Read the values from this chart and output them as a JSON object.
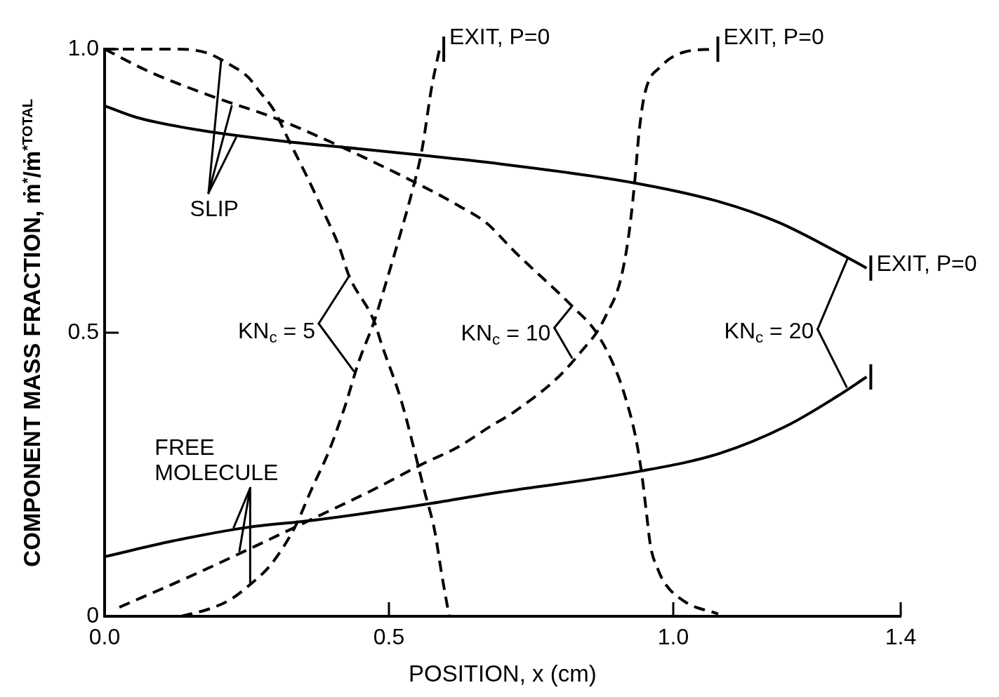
{
  "chart_data": {
    "type": "line",
    "xlabel": "POSITION, x (cm)",
    "ylabel": "COMPONENT MASS FRACTION, ṁ$^{*}$/ṁ$^{*TOTAL}$",
    "xlim": [
      0,
      1.4
    ],
    "ylim": [
      0,
      1
    ],
    "xticks": [
      {
        "value": 0,
        "label": "0.0"
      },
      0.5,
      {
        "value": 1,
        "label": "1.0"
      },
      1.4
    ],
    "yticks": [
      0,
      0.5,
      {
        "value": 1,
        "label": "1.0"
      }
    ],
    "series": [
      {
        "color": "#000000",
        "line_style": "dashed",
        "x": [
          0,
          0.06,
          0.12,
          0.178,
          0.218,
          0.253,
          0.271,
          0.298,
          0.324,
          0.355,
          0.386,
          0.412,
          0.43,
          0.474,
          0.487,
          0.522,
          0.564,
          0.58,
          0.593,
          0.606
        ],
        "values": [
          1,
          1,
          1,
          0.994,
          0.974,
          0.95,
          0.927,
          0.892,
          0.839,
          0.777,
          0.711,
          0.653,
          0.6,
          0.52,
          0.48,
          0.379,
          0.215,
          0.153,
          0.073,
          0
        ]
      },
      {
        "color": "#000000",
        "line_style": "dashed",
        "x": [
          0.135,
          0.187,
          0.222,
          0.256,
          0.289,
          0.315,
          0.337,
          0.364,
          0.394,
          0.421,
          0.447,
          0.474,
          0.496,
          0.518,
          0.54,
          0.558,
          0.575,
          0.589
        ],
        "values": [
          0,
          0.014,
          0.03,
          0.056,
          0.087,
          0.123,
          0.162,
          0.224,
          0.29,
          0.365,
          0.449,
          0.52,
          0.592,
          0.667,
          0.746,
          0.822,
          0.932,
          1
        ]
      },
      {
        "color": "#000000",
        "line_style": "dashed",
        "x": [
          0,
          0.077,
          0.191,
          0.298,
          0.407,
          0.54,
          0.619,
          0.672,
          0.721,
          0.824,
          0.865,
          0.899,
          0.917,
          0.934,
          0.945,
          0.953,
          0.96,
          0.973,
          0.984,
          1.02,
          1.079
        ],
        "values": [
          1,
          0.961,
          0.916,
          0.879,
          0.832,
          0.768,
          0.726,
          0.693,
          0.643,
          0.545,
          0.5,
          0.434,
          0.382,
          0.315,
          0.248,
          0.181,
          0.124,
          0.083,
          0.06,
          0.026,
          0.004
        ]
      },
      {
        "color": "#000000",
        "line_style": "dashed",
        "x": [
          0.026,
          0.143,
          0.253,
          0.364,
          0.474,
          0.562,
          0.619,
          0.677,
          0.721,
          0.799,
          0.845,
          0.865,
          0.881,
          0.907,
          0.922,
          0.932,
          0.94,
          0.95,
          0.979,
          1.02,
          1.071
        ],
        "values": [
          0.016,
          0.067,
          0.118,
          0.171,
          0.224,
          0.27,
          0.297,
          0.334,
          0.361,
          0.423,
          0.475,
          0.5,
          0.529,
          0.592,
          0.674,
          0.764,
          0.855,
          0.922,
          0.97,
          0.995,
          1
        ]
      },
      {
        "color": "#000000",
        "line_style": "solid",
        "x": [
          0,
          0.055,
          0.156,
          0.32,
          0.43,
          0.557,
          0.676,
          0.932,
          1.081,
          1.184,
          1.287,
          1.34
        ],
        "values": [
          0.9,
          0.88,
          0.859,
          0.837,
          0.826,
          0.813,
          0.8,
          0.764,
          0.731,
          0.695,
          0.643,
          0.614
        ]
      },
      {
        "color": "#000000",
        "line_style": "solid",
        "x": [
          0,
          0.121,
          0.253,
          0.364,
          0.562,
          0.677,
          0.943,
          1.081,
          1.2,
          1.287,
          1.34
        ],
        "values": [
          0.105,
          0.133,
          0.157,
          0.169,
          0.197,
          0.216,
          0.256,
          0.287,
          0.336,
          0.387,
          0.422
        ]
      }
    ],
    "annotations": [
      {
        "text": "EXIT, P=0",
        "x": 0.589,
        "y": 1
      },
      {
        "text": "EXIT, P=0",
        "x": 1.071,
        "y": 1
      },
      {
        "text": "EXIT, P=0",
        "x": 1.34,
        "y": 0.614
      },
      {
        "text": "SLIP",
        "x": 0.205,
        "y": 0.981
      },
      {
        "text": "FREE MOLECULE",
        "x": 0.256,
        "y": 0.056
      },
      {
        "text": "KN$_{c}$ = 5",
        "x": 0.43,
        "y": 0.6
      },
      {
        "text": "KN$_{c}$ = 10",
        "x": 0.822,
        "y": 0.547
      },
      {
        "text": "KN$_{c}$ = 20",
        "x": 1.307,
        "y": 0.632
      }
    ]
  }
}
